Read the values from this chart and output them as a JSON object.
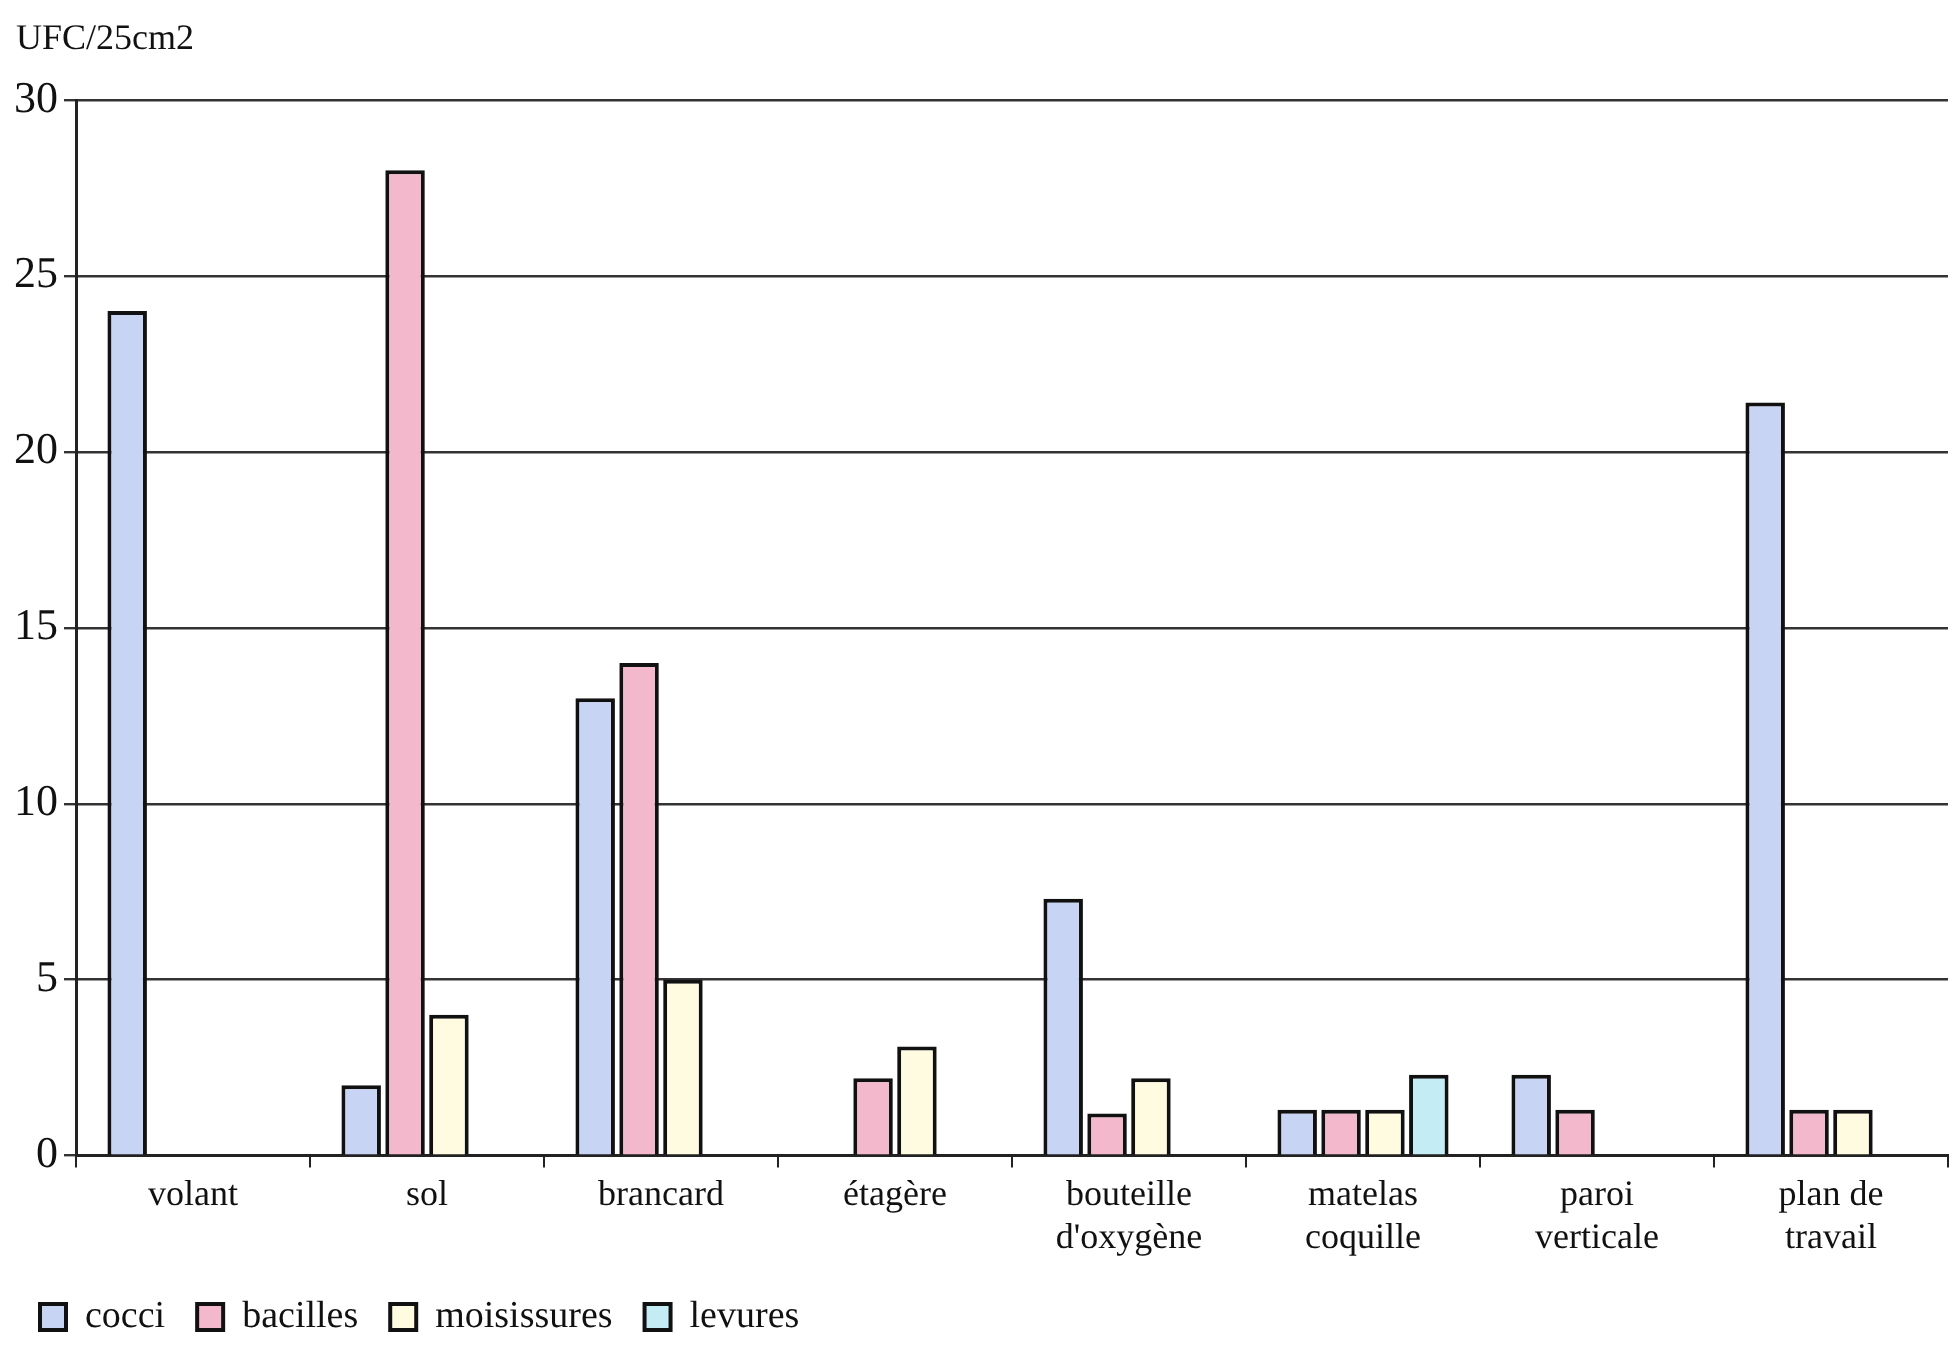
{
  "chart_data": {
    "type": "bar",
    "ylabel": "UFC/25cm2",
    "categories": [
      "volant",
      "sol",
      "brancard",
      "étagère",
      "bouteille d'oxygène",
      "matelas coquille",
      "paroi verticale",
      "plan de travail"
    ],
    "series": [
      {
        "name": "cocci",
        "color": "#c8d4f4",
        "values": [
          24,
          2,
          13,
          null,
          7.3,
          1.3,
          2.3,
          21.4
        ]
      },
      {
        "name": "bacilles",
        "color": "#f4b8cc",
        "values": [
          null,
          28,
          14,
          2.2,
          1.2,
          1.3,
          1.3,
          1.3
        ]
      },
      {
        "name": "moisissures",
        "color": "#fffbe0",
        "values": [
          null,
          4,
          5,
          3.1,
          2.2,
          1.3,
          null,
          1.3
        ]
      },
      {
        "name": "levures",
        "color": "#c4ecf4",
        "values": [
          null,
          null,
          null,
          null,
          null,
          2.3,
          null,
          null
        ]
      }
    ],
    "ylim": [
      0,
      30
    ],
    "yticks": [
      0,
      5,
      10,
      15,
      20,
      25,
      30
    ],
    "grid": "y",
    "legend": "bottom left"
  }
}
